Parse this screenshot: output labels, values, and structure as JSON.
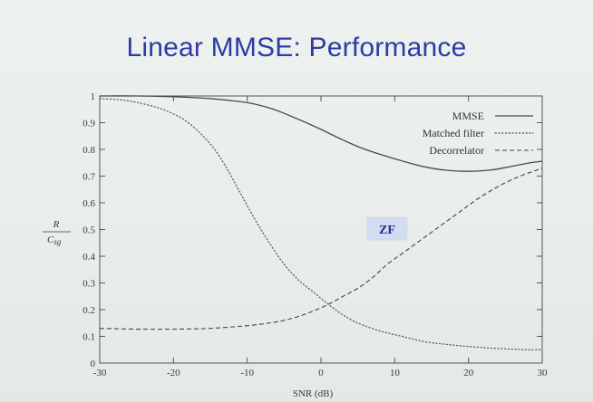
{
  "slide": {
    "title": "Linear MMSE: Performance"
  },
  "chart_data": {
    "type": "line",
    "title": "",
    "xlabel": "SNR (dB)",
    "ylabel_num": "R",
    "ylabel_den": "C",
    "ylabel_den_sub": "sg",
    "xlim": [
      -30,
      30
    ],
    "ylim": [
      0,
      1
    ],
    "xticks": [
      -30,
      -20,
      -10,
      0,
      10,
      20,
      30
    ],
    "yticks": [
      0,
      0.1,
      0.2,
      0.3,
      0.4,
      0.5,
      0.6,
      0.7,
      0.8,
      0.9,
      1
    ],
    "ytick_labels": [
      "0",
      "0.1",
      "0.2",
      "0.3",
      "0.4",
      "0.5",
      "0.6",
      "0.7",
      "0.8",
      "0.9",
      "1"
    ],
    "grid": false,
    "legend_position": "top-right",
    "annotation": {
      "text": "ZF",
      "x": 9,
      "y": 0.5
    },
    "series": [
      {
        "name": "MMSE",
        "style": "solid",
        "x": [
          -30,
          -25,
          -20,
          -15,
          -10,
          -7,
          -5,
          -2,
          0,
          3,
          6,
          10,
          14,
          17,
          20,
          23,
          25,
          28,
          30
        ],
        "y": [
          1.0,
          1.0,
          0.997,
          0.99,
          0.975,
          0.955,
          0.935,
          0.9,
          0.875,
          0.835,
          0.8,
          0.765,
          0.735,
          0.722,
          0.718,
          0.723,
          0.732,
          0.748,
          0.756
        ]
      },
      {
        "name": "Matched filter",
        "style": "dotted",
        "x": [
          -30,
          -27,
          -24,
          -21,
          -18,
          -15,
          -13,
          -11,
          -9,
          -7,
          -5,
          -3,
          -1,
          1,
          3,
          5,
          8,
          11,
          14,
          17,
          20,
          23,
          26,
          28,
          30
        ],
        "y": [
          0.99,
          0.985,
          0.97,
          0.945,
          0.9,
          0.82,
          0.74,
          0.64,
          0.54,
          0.45,
          0.37,
          0.31,
          0.265,
          0.22,
          0.18,
          0.15,
          0.12,
          0.1,
          0.08,
          0.07,
          0.062,
          0.056,
          0.052,
          0.05,
          0.05
        ]
      },
      {
        "name": "Decorrelator",
        "style": "dashed",
        "x": [
          -30,
          -25,
          -20,
          -15,
          -10,
          -7,
          -5,
          -3,
          -1,
          1,
          3,
          5,
          7,
          9,
          11,
          13,
          15,
          17,
          19,
          21,
          23,
          25,
          27,
          29,
          30
        ],
        "y": [
          0.13,
          0.127,
          0.127,
          0.13,
          0.14,
          0.15,
          0.16,
          0.175,
          0.195,
          0.22,
          0.25,
          0.28,
          0.32,
          0.37,
          0.41,
          0.45,
          0.49,
          0.53,
          0.57,
          0.61,
          0.645,
          0.675,
          0.7,
          0.72,
          0.73
        ]
      }
    ]
  }
}
